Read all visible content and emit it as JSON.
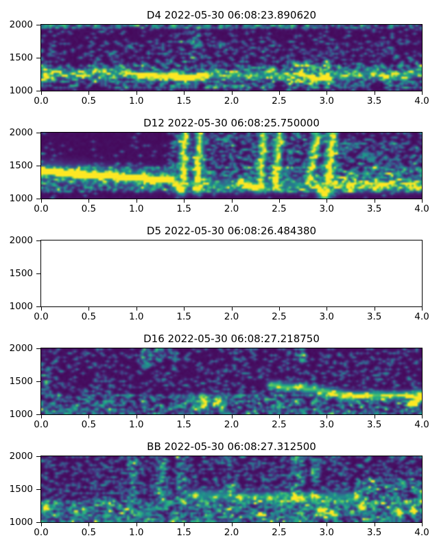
{
  "figure": {
    "background": "#ffffff",
    "text_color": "#000000",
    "frame_color": "#000000",
    "xtick_labels": [
      "0.0",
      "0.5",
      "1.0",
      "1.5",
      "2.0",
      "2.5",
      "3.0",
      "3.5",
      "4.0"
    ],
    "ytick_labels": [
      "2000",
      "1500",
      "1000"
    ]
  },
  "chart_data": {
    "type": "heatmap",
    "colormap": "viridis",
    "colormap_hex": {
      "low": "#440154",
      "mid": "#21918c",
      "high": "#fde725"
    },
    "x_range": [
      0.0,
      4.0
    ],
    "y_range": [
      1000,
      2000
    ],
    "xlabel": "",
    "ylabel": "",
    "grid": false,
    "panels": [
      {
        "label": "D4",
        "timestamp": "2022-05-30 06:08:23.890620",
        "title": "D4 2022-05-30 06:08:23.890620",
        "empty": false,
        "seed": 7,
        "noise": [
          {
            "t": [
              0,
              4
            ],
            "f": [
              1000,
              2000
            ],
            "d": 0.09,
            "a": 0.5
          },
          {
            "t": [
              0,
              4
            ],
            "f": [
              1060,
              1390
            ],
            "d": 0.38,
            "a": 0.62
          },
          {
            "t": [
              0,
              4
            ],
            "f": [
              1945,
              2000
            ],
            "d": 0.5,
            "a": 0.6
          },
          {
            "t": [
              0,
              4
            ],
            "f": [
              1390,
              1750
            ],
            "d": 0.13,
            "a": 0.45
          },
          {
            "t": [
              1.56,
              1.66
            ],
            "f": [
              1450,
              2000
            ],
            "d": 0.38,
            "a": 0.5
          },
          {
            "t": [
              2.6,
              3.05
            ],
            "f": [
              1100,
              1450
            ],
            "d": 0.5,
            "a": 0.6
          }
        ],
        "tracks": [
          {
            "pts": [
              [
                0,
                1320
              ],
              [
                0.3,
                1268
              ],
              [
                0.62,
                1292
              ],
              [
                0.95,
                1262
              ],
              [
                1.2,
                1240
              ],
              [
                1.6,
                1228
              ],
              [
                1.95,
                1238
              ],
              [
                2.2,
                1262
              ],
              [
                2.5,
                1242
              ],
              [
                2.72,
                1242
              ],
              [
                2.88,
                1192
              ],
              [
                3.05,
                1242
              ],
              [
                3.4,
                1268
              ],
              [
                3.72,
                1248
              ],
              [
                4,
                1268
              ]
            ],
            "amp": 0.5,
            "sigma": 1.2,
            "wiggle": 22
          },
          {
            "pts": [
              [
                1.02,
                1235
              ],
              [
                1.3,
                1228
              ],
              [
                1.55,
                1224
              ],
              [
                1.75,
                1232
              ]
            ],
            "amp": 1.25,
            "sigma": 1.1,
            "wiggle": 6
          }
        ],
        "blobs": [
          [
            0.05,
            1238,
            1.5,
            1.15
          ],
          [
            0.3,
            1260,
            1.2,
            0.6
          ],
          [
            0.62,
            1228,
            1.3,
            0.75
          ],
          [
            2.78,
            1238,
            1.4,
            0.85
          ],
          [
            3.0,
            1235,
            1.1,
            0.6
          ],
          [
            3.55,
            1265,
            1.2,
            0.55
          ]
        ]
      },
      {
        "label": "D12",
        "timestamp": "2022-05-30 06:08:25.750000",
        "title": "D12 2022-05-30 06:08:25.750000",
        "empty": false,
        "seed": 21,
        "noise": [
          {
            "t": [
              0,
              4
            ],
            "f": [
              1000,
              2000
            ],
            "d": 0.035,
            "a": 0.5
          },
          {
            "t": [
              0,
              4
            ],
            "f": [
              1095,
              1460
            ],
            "d": 0.42,
            "a": 0.6
          },
          {
            "t": [
              1.35,
              3.1
            ],
            "f": [
              1460,
              2000
            ],
            "d": 0.3,
            "a": 0.55
          },
          {
            "t": [
              3.05,
              4
            ],
            "f": [
              1130,
              1820
            ],
            "d": 0.36,
            "a": 0.5
          },
          {
            "t": [
              3.05,
              4
            ],
            "f": [
              1820,
              2000
            ],
            "d": 0.12,
            "a": 0.45
          },
          {
            "t": [
              0,
              1.35
            ],
            "f": [
              1460,
              1530
            ],
            "d": 0.1,
            "a": 0.4
          }
        ],
        "tracks": [
          {
            "pts": [
              [
                0,
                1428
              ],
              [
                0.3,
                1392
              ],
              [
                0.62,
                1362
              ],
              [
                0.95,
                1332
              ],
              [
                1.2,
                1308
              ],
              [
                1.36,
                1292
              ]
            ],
            "amp": 1.35,
            "sigma": 1.3,
            "wiggle": 6
          },
          {
            "pts": [
              [
                0,
                1428
              ],
              [
                0.62,
                1362
              ],
              [
                1.2,
                1308
              ]
            ],
            "amp": 0.4,
            "sigma": 3,
            "wiggle": 20
          },
          {
            "pts": [
              [
                1.4,
                1240
              ],
              [
                2.1,
                1215
              ],
              [
                2.9,
                1210
              ],
              [
                3.5,
                1215
              ],
              [
                4,
                1220
              ]
            ],
            "amp": 0.42,
            "sigma": 2.0,
            "wiggle": 28
          },
          {
            "pts": [
              [
                1.37,
                1288
              ],
              [
                1.43,
                1195
              ],
              [
                1.46,
                1145
              ]
            ],
            "amp": 1.0,
            "sigma": 1.3,
            "wiggle": 0
          },
          {
            "pts": [
              [
                1.47,
                1140
              ],
              [
                1.5,
                2000
              ]
            ],
            "amp": 0.92,
            "sigma": 1.25,
            "wiggle": 0
          },
          {
            "pts": [
              [
                1.62,
                1140
              ],
              [
                1.66,
                2000
              ]
            ],
            "amp": 0.92,
            "sigma": 1.25,
            "wiggle": 0
          },
          {
            "pts": [
              [
                2.08,
                1278
              ],
              [
                2.2,
                1192
              ],
              [
                2.27,
                1162
              ]
            ],
            "amp": 0.85,
            "sigma": 1.3,
            "wiggle": 0
          },
          {
            "pts": [
              [
                2.29,
                1160
              ],
              [
                2.33,
                2000
              ]
            ],
            "amp": 0.88,
            "sigma": 1.25,
            "wiggle": 0
          },
          {
            "pts": [
              [
                2.45,
                1170
              ],
              [
                2.49,
                2000
              ]
            ],
            "amp": 0.88,
            "sigma": 1.25,
            "wiggle": 0
          },
          {
            "pts": [
              [
                2.8,
                1235
              ],
              [
                2.89,
                2000
              ]
            ],
            "amp": 0.82,
            "sigma": 1.25,
            "wiggle": 0
          },
          {
            "pts": [
              [
                2.88,
                1225
              ],
              [
                2.94,
                1110
              ],
              [
                2.97,
                1082
              ]
            ],
            "amp": 1.0,
            "sigma": 1.4,
            "wiggle": 0
          },
          {
            "pts": [
              [
                2.99,
                1085
              ],
              [
                3.05,
                2000
              ]
            ],
            "amp": 0.88,
            "sigma": 1.3,
            "wiggle": 0
          }
        ],
        "blobs": [
          [
            1.47,
            1160,
            1.7,
            1.3
          ],
          [
            1.63,
            1155,
            1.5,
            1.15
          ],
          [
            2.26,
            1180,
            1.7,
            1.2
          ],
          [
            2.47,
            1185,
            1.2,
            0.9
          ],
          [
            2.96,
            1092,
            2.0,
            1.35
          ],
          [
            0.03,
            1425,
            1.5,
            1.2
          ]
        ]
      },
      {
        "label": "D5",
        "timestamp": "2022-05-30 06:08:26.484380",
        "title": "D5 2022-05-30 06:08:26.484380",
        "empty": true,
        "seed": 1,
        "noise": [],
        "tracks": [],
        "blobs": []
      },
      {
        "label": "D16",
        "timestamp": "2022-05-30 06:08:27.218750",
        "title": "D16 2022-05-30 06:08:27.218750",
        "empty": false,
        "seed": 33,
        "noise": [
          {
            "t": [
              0,
              4
            ],
            "f": [
              1000,
              2000
            ],
            "d": 0.15,
            "a": 0.48
          },
          {
            "t": [
              0,
              4
            ],
            "f": [
              1000,
              1290
            ],
            "d": 0.38,
            "a": 0.55
          },
          {
            "t": [
              1.06,
              1.14
            ],
            "f": [
              1720,
              2000
            ],
            "d": 0.45,
            "a": 0.55
          },
          {
            "t": [
              1.2,
              1.27
            ],
            "f": [
              1790,
              2000
            ],
            "d": 0.45,
            "a": 0.55
          },
          {
            "t": [
              1.35,
              1.42
            ],
            "f": [
              1840,
              2000
            ],
            "d": 0.45,
            "a": 0.55
          },
          {
            "t": [
              2.71,
              2.79
            ],
            "f": [
              1790,
              2000
            ],
            "d": 0.6,
            "a": 0.68
          },
          {
            "t": [
              0,
              0.1
            ],
            "f": [
              1300,
              1700
            ],
            "d": 0.4,
            "a": 0.5
          }
        ],
        "tracks": [
          {
            "pts": [
              [
                2.4,
                1448
              ],
              [
                2.7,
                1422
              ],
              [
                3.0,
                1352
              ],
              [
                3.2,
                1308
              ],
              [
                3.5,
                1292
              ],
              [
                3.75,
                1302
              ],
              [
                4,
                1325
              ]
            ],
            "amp": 0.8,
            "sigma": 1.3,
            "wiggle": 10
          },
          {
            "pts": [
              [
                3.88,
                1175
              ],
              [
                3.96,
                1235
              ],
              [
                4,
                1340
              ]
            ],
            "amp": 1.15,
            "sigma": 1.25,
            "wiggle": 0
          }
        ],
        "blobs": [
          [
            1.7,
            1212,
            2.2,
            0.75
          ],
          [
            1.85,
            1198,
            1.8,
            0.8
          ],
          [
            3.2,
            1302,
            1.4,
            1.15
          ],
          [
            1.55,
            1235,
            1.5,
            0.5
          ]
        ]
      },
      {
        "label": "BB",
        "timestamp": "2022-05-30 06:08:27.312500",
        "title": "BB 2022-05-30 06:08:27.312500",
        "empty": false,
        "seed": 55,
        "noise": [
          {
            "t": [
              0,
              4
            ],
            "f": [
              1000,
              2000
            ],
            "d": 0.25,
            "a": 0.48
          },
          {
            "t": [
              0,
              4
            ],
            "f": [
              1000,
              1310
            ],
            "d": 0.48,
            "a": 0.58
          },
          {
            "t": [
              0.92,
              1.0
            ],
            "f": [
              1300,
              2000
            ],
            "d": 0.45,
            "a": 0.5
          },
          {
            "t": [
              1.22,
              1.3
            ],
            "f": [
              1350,
              2000
            ],
            "d": 0.45,
            "a": 0.5
          },
          {
            "t": [
              1.44,
              1.52
            ],
            "f": [
              1300,
              2000
            ],
            "d": 0.45,
            "a": 0.5
          },
          {
            "t": [
              1.96,
              2.03
            ],
            "f": [
              1400,
              2000
            ],
            "d": 0.4,
            "a": 0.5
          },
          {
            "t": [
              2.64,
              2.74
            ],
            "f": [
              1300,
              2000
            ],
            "d": 0.5,
            "a": 0.55
          },
          {
            "t": [
              2.84,
              2.92
            ],
            "f": [
              1350,
              2000
            ],
            "d": 0.45,
            "a": 0.5
          },
          {
            "t": [
              3.3,
              4
            ],
            "f": [
              1300,
              1650
            ],
            "d": 0.42,
            "a": 0.55
          }
        ],
        "tracks": [
          {
            "pts": [
              [
                1.55,
                1425
              ],
              [
                2.0,
                1402
              ],
              [
                2.5,
                1392
              ],
              [
                3.0,
                1390
              ],
              [
                3.3,
                1402
              ]
            ],
            "amp": 0.5,
            "sigma": 1.7,
            "wiggle": 20
          }
        ],
        "blobs": [
          [
            1.62,
            1428,
            1.4,
            1.25
          ],
          [
            1.83,
            1408,
            1.2,
            1.0
          ],
          [
            2.09,
            1400,
            1.3,
            1.2
          ],
          [
            2.23,
            1396,
            1.1,
            1.0
          ],
          [
            2.38,
            1392,
            1.3,
            1.1
          ],
          [
            2.55,
            1388,
            1.1,
            0.9
          ],
          [
            2.7,
            1386,
            1.2,
            1.0
          ],
          [
            2.88,
            1392,
            1.1,
            0.9
          ],
          [
            2.92,
            1192,
            1.3,
            1.1
          ],
          [
            3.05,
            1152,
            1.2,
            1.0
          ],
          [
            3.75,
            1172,
            1.4,
            1.1
          ],
          [
            3.9,
            1218,
            1.2,
            1.0
          ],
          [
            0.04,
            1252,
            1.4,
            1.05
          ],
          [
            2.3,
            1122,
            1.1,
            0.8
          ],
          [
            3.35,
            1240,
            1.2,
            0.8
          ]
        ]
      }
    ]
  }
}
